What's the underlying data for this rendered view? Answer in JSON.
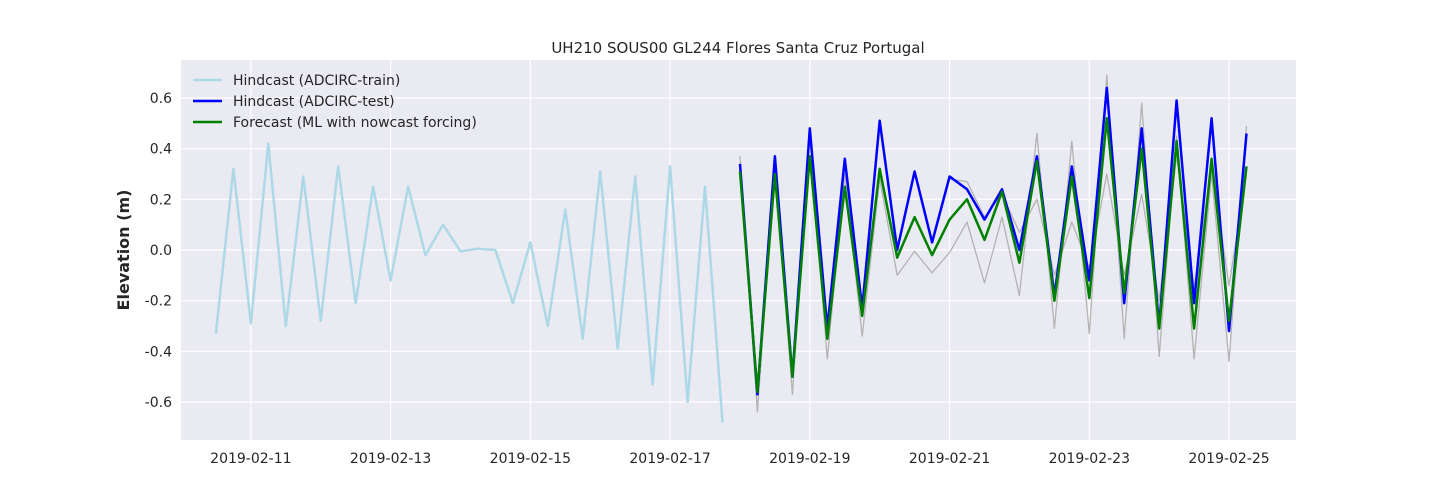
{
  "chart_data": {
    "type": "line",
    "title": "UH210 SOUS00 GL244 Flores Santa Cruz Portugal",
    "xlabel": "",
    "ylabel": "Elevation (m)",
    "x_type": "date",
    "xlim": [
      "2019-02-10T00:00",
      "2019-02-25T23:00"
    ],
    "ylim": [
      -0.75,
      0.75
    ],
    "x_ticks": [
      "2019-02-11",
      "2019-02-13",
      "2019-02-15",
      "2019-02-17",
      "2019-02-19",
      "2019-02-21",
      "2019-02-23",
      "2019-02-25"
    ],
    "y_ticks": [
      -0.6,
      -0.4,
      -0.2,
      0.0,
      0.2,
      0.4,
      0.6
    ],
    "grid": true,
    "legend_position": "top-left",
    "series": [
      {
        "name": "Hindcast (ADCIRC-train)",
        "color": "#add8e6",
        "width": 2.5,
        "legend": true,
        "points": [
          [
            "2019-02-10T12:00",
            -0.33
          ],
          [
            "2019-02-10T18:00",
            0.32
          ],
          [
            "2019-02-11T00:00",
            -0.29
          ],
          [
            "2019-02-11T06:00",
            0.42
          ],
          [
            "2019-02-11T12:00",
            -0.3
          ],
          [
            "2019-02-11T18:00",
            0.29
          ],
          [
            "2019-02-12T00:00",
            -0.28
          ],
          [
            "2019-02-12T06:00",
            0.33
          ],
          [
            "2019-02-12T12:00",
            -0.21
          ],
          [
            "2019-02-12T18:00",
            0.25
          ],
          [
            "2019-02-13T00:00",
            -0.12
          ],
          [
            "2019-02-13T06:00",
            0.25
          ],
          [
            "2019-02-13T12:00",
            -0.02
          ],
          [
            "2019-02-13T18:00",
            0.1
          ],
          [
            "2019-02-14T00:00",
            -0.005
          ],
          [
            "2019-02-14T06:00",
            0.005
          ],
          [
            "2019-02-14T12:00",
            0.0
          ],
          [
            "2019-02-14T18:00",
            -0.21
          ],
          [
            "2019-02-15T00:00",
            0.03
          ],
          [
            "2019-02-15T06:00",
            -0.3
          ],
          [
            "2019-02-15T12:00",
            0.16
          ],
          [
            "2019-02-15T18:00",
            -0.35
          ],
          [
            "2019-02-16T00:00",
            0.31
          ],
          [
            "2019-02-16T06:00",
            -0.39
          ],
          [
            "2019-02-16T12:00",
            0.29
          ],
          [
            "2019-02-16T18:00",
            -0.53
          ],
          [
            "2019-02-17T00:00",
            0.33
          ],
          [
            "2019-02-17T06:00",
            -0.6
          ],
          [
            "2019-02-17T12:00",
            0.25
          ],
          [
            "2019-02-17T18:00",
            -0.68
          ]
        ]
      },
      {
        "name": "",
        "color": "#b3b3b3",
        "width": 1.3,
        "legend": false,
        "points": [
          [
            "2019-02-18T00:00",
            0.37
          ],
          [
            "2019-02-18T06:00",
            -0.64
          ],
          [
            "2019-02-18T12:00",
            0.33
          ],
          [
            "2019-02-18T18:00",
            -0.57
          ],
          [
            "2019-02-19T00:00",
            0.45
          ],
          [
            "2019-02-19T06:00",
            -0.43
          ],
          [
            "2019-02-19T12:00",
            0.3
          ],
          [
            "2019-02-19T18:00",
            -0.34
          ],
          [
            "2019-02-20T00:00",
            0.28
          ],
          [
            "2019-02-20T06:00",
            -0.1
          ],
          [
            "2019-02-20T12:00",
            -0.005
          ],
          [
            "2019-02-20T18:00",
            -0.09
          ],
          [
            "2019-02-21T00:00",
            -0.01
          ],
          [
            "2019-02-21T06:00",
            0.11
          ],
          [
            "2019-02-21T12:00",
            -0.13
          ],
          [
            "2019-02-21T18:00",
            0.13
          ],
          [
            "2019-02-22T00:00",
            -0.18
          ],
          [
            "2019-02-22T06:00",
            0.46
          ],
          [
            "2019-02-22T12:00",
            -0.31
          ],
          [
            "2019-02-22T18:00",
            0.43
          ],
          [
            "2019-02-23T00:00",
            -0.33
          ],
          [
            "2019-02-23T06:00",
            0.69
          ],
          [
            "2019-02-23T12:00",
            -0.35
          ],
          [
            "2019-02-23T18:00",
            0.58
          ],
          [
            "2019-02-24T00:00",
            -0.42
          ],
          [
            "2019-02-24T06:00",
            0.45
          ],
          [
            "2019-02-24T12:00",
            -0.43
          ],
          [
            "2019-02-24T18:00",
            0.3
          ],
          [
            "2019-02-25T00:00",
            -0.44
          ],
          [
            "2019-02-25T06:00",
            0.49
          ]
        ]
      },
      {
        "name": "",
        "color": "#b3b3b3",
        "width": 1.3,
        "legend": false,
        "points": [
          [
            "2019-02-20T12:00",
            0.3
          ],
          [
            "2019-02-20T18:00",
            0.04
          ],
          [
            "2019-02-21T00:00",
            0.28
          ],
          [
            "2019-02-21T06:00",
            0.27
          ],
          [
            "2019-02-21T12:00",
            0.13
          ],
          [
            "2019-02-21T18:00",
            0.22
          ],
          [
            "2019-02-22T00:00",
            0.07
          ],
          [
            "2019-02-22T06:00",
            0.2
          ],
          [
            "2019-02-22T12:00",
            -0.1
          ],
          [
            "2019-02-22T18:00",
            0.11
          ],
          [
            "2019-02-23T00:00",
            -0.07
          ],
          [
            "2019-02-23T06:00",
            0.3
          ],
          [
            "2019-02-23T12:00",
            -0.1
          ],
          [
            "2019-02-23T18:00",
            0.22
          ],
          [
            "2019-02-24T00:00",
            -0.2
          ],
          [
            "2019-02-24T06:00",
            0.37
          ],
          [
            "2019-02-24T12:00",
            -0.15
          ],
          [
            "2019-02-24T18:00",
            0.33
          ],
          [
            "2019-02-25T00:00",
            -0.14
          ],
          [
            "2019-02-25T06:00",
            0.3
          ]
        ]
      },
      {
        "name": "Hindcast (ADCIRC-test)",
        "color": "#0000ff",
        "width": 2.5,
        "legend": true,
        "points": [
          [
            "2019-02-18T00:00",
            0.34
          ],
          [
            "2019-02-18T06:00",
            -0.57
          ],
          [
            "2019-02-18T12:00",
            0.37
          ],
          [
            "2019-02-18T18:00",
            -0.5
          ],
          [
            "2019-02-19T00:00",
            0.48
          ],
          [
            "2019-02-19T06:00",
            -0.31
          ],
          [
            "2019-02-19T12:00",
            0.36
          ],
          [
            "2019-02-19T18:00",
            -0.23
          ],
          [
            "2019-02-20T00:00",
            0.51
          ],
          [
            "2019-02-20T06:00",
            0.0
          ],
          [
            "2019-02-20T12:00",
            0.31
          ],
          [
            "2019-02-20T18:00",
            0.03
          ],
          [
            "2019-02-21T00:00",
            0.29
          ],
          [
            "2019-02-21T06:00",
            0.24
          ],
          [
            "2019-02-21T12:00",
            0.12
          ],
          [
            "2019-02-21T18:00",
            0.24
          ],
          [
            "2019-02-22T00:00",
            0.0
          ],
          [
            "2019-02-22T06:00",
            0.37
          ],
          [
            "2019-02-22T12:00",
            -0.18
          ],
          [
            "2019-02-22T18:00",
            0.33
          ],
          [
            "2019-02-23T00:00",
            -0.12
          ],
          [
            "2019-02-23T06:00",
            0.64
          ],
          [
            "2019-02-23T12:00",
            -0.21
          ],
          [
            "2019-02-23T18:00",
            0.48
          ],
          [
            "2019-02-24T00:00",
            -0.3
          ],
          [
            "2019-02-24T06:00",
            0.59
          ],
          [
            "2019-02-24T12:00",
            -0.21
          ],
          [
            "2019-02-24T18:00",
            0.52
          ],
          [
            "2019-02-25T00:00",
            -0.32
          ],
          [
            "2019-02-25T06:00",
            0.46
          ]
        ]
      },
      {
        "name": "Forecast (ML with nowcast forcing)",
        "color": "#008000",
        "width": 2.5,
        "legend": true,
        "points": [
          [
            "2019-02-18T00:00",
            0.31
          ],
          [
            "2019-02-18T06:00",
            -0.56
          ],
          [
            "2019-02-18T12:00",
            0.3
          ],
          [
            "2019-02-18T18:00",
            -0.5
          ],
          [
            "2019-02-19T00:00",
            0.37
          ],
          [
            "2019-02-19T06:00",
            -0.35
          ],
          [
            "2019-02-19T12:00",
            0.25
          ],
          [
            "2019-02-19T18:00",
            -0.26
          ],
          [
            "2019-02-20T00:00",
            0.32
          ],
          [
            "2019-02-20T06:00",
            -0.03
          ],
          [
            "2019-02-20T12:00",
            0.13
          ],
          [
            "2019-02-20T18:00",
            -0.02
          ],
          [
            "2019-02-21T00:00",
            0.12
          ],
          [
            "2019-02-21T06:00",
            0.2
          ],
          [
            "2019-02-21T12:00",
            0.04
          ],
          [
            "2019-02-21T18:00",
            0.23
          ],
          [
            "2019-02-22T00:00",
            -0.05
          ],
          [
            "2019-02-22T06:00",
            0.35
          ],
          [
            "2019-02-22T12:00",
            -0.2
          ],
          [
            "2019-02-22T18:00",
            0.29
          ],
          [
            "2019-02-23T00:00",
            -0.19
          ],
          [
            "2019-02-23T06:00",
            0.52
          ],
          [
            "2019-02-23T12:00",
            -0.17
          ],
          [
            "2019-02-23T18:00",
            0.4
          ],
          [
            "2019-02-24T00:00",
            -0.31
          ],
          [
            "2019-02-24T06:00",
            0.43
          ],
          [
            "2019-02-24T12:00",
            -0.31
          ],
          [
            "2019-02-24T18:00",
            0.36
          ],
          [
            "2019-02-25T00:00",
            -0.28
          ],
          [
            "2019-02-25T06:00",
            0.33
          ]
        ]
      }
    ]
  }
}
